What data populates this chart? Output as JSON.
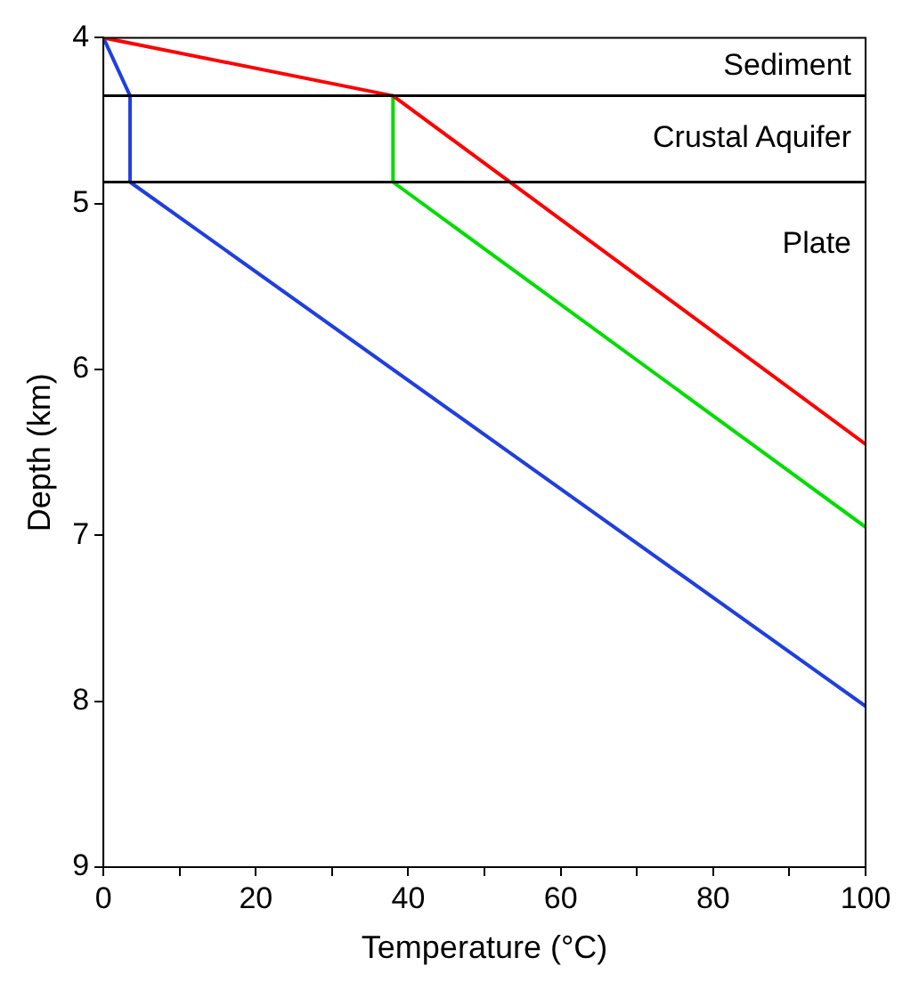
{
  "chart_data": {
    "type": "line",
    "xlabel": "Temperature (°C)",
    "ylabel": "Depth (km)",
    "xlim": [
      0,
      100
    ],
    "ylim": [
      9,
      4
    ],
    "xticks": [
      0,
      {
        "value": 10,
        "label": null
      },
      20,
      {
        "value": 30,
        "label": null
      },
      40,
      {
        "value": 50,
        "label": null
      },
      60,
      {
        "value": 70,
        "label": null
      },
      80,
      {
        "value": 90,
        "label": null
      },
      100
    ],
    "yticks": [
      4,
      5,
      6,
      7,
      8,
      9
    ],
    "grid": false,
    "legend": false,
    "marker": "none",
    "line_style": "solid",
    "series": [
      {
        "color": "#ff0000",
        "x": [
          0,
          38,
          100
        ],
        "values": [
          4,
          4.35,
          6.45
        ]
      },
      {
        "color": "#00dd00",
        "x": [
          38,
          38,
          100
        ],
        "values": [
          4.35,
          4.87,
          6.95
        ]
      },
      {
        "color": "#1f3fe0",
        "x": [
          0,
          3.5,
          3.5,
          100
        ],
        "values": [
          4,
          4.35,
          4.87,
          8.03
        ]
      }
    ],
    "ref_lines": [
      {
        "axis": "y",
        "value": 4.35,
        "color": "#000000"
      },
      {
        "axis": "y",
        "value": 4.87,
        "color": "#000000"
      }
    ],
    "annotations": [
      "Sediment",
      "Crustal Aquifer",
      "Plate"
    ]
  }
}
